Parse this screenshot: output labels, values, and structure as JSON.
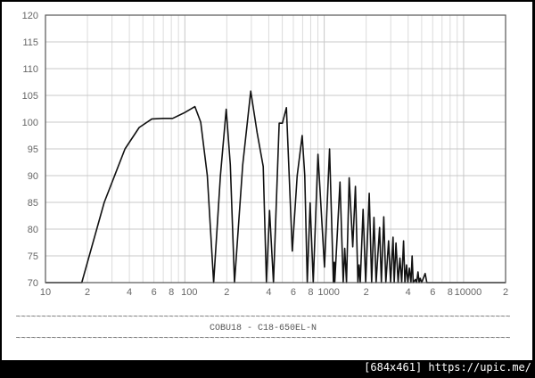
{
  "chart_data": {
    "type": "line",
    "title": "COBU18 - C18-650EL-N",
    "separator": "~~~~~~~~~~~~~~~~~~~~~~~~~~~~~~~~~~~~~~~~~~~~~~~~~~~~~~~~~~~~~~~~~~~~~~~~~~~~~~~~~~~~~~~~~~~~~~~~~",
    "xlabel": "",
    "ylabel": "",
    "xscale": "log",
    "xlim": [
      10,
      20000
    ],
    "ylim": [
      70,
      120
    ],
    "grid": true,
    "x_tick_labels": [
      {
        "value": 10,
        "label": "10"
      },
      {
        "value": 20,
        "label": "2"
      },
      {
        "value": 40,
        "label": "4"
      },
      {
        "value": 60,
        "label": "6"
      },
      {
        "value": 80,
        "label": "8"
      },
      {
        "value": 100,
        "label": "100"
      },
      {
        "value": 200,
        "label": "2"
      },
      {
        "value": 400,
        "label": "4"
      },
      {
        "value": 600,
        "label": "6"
      },
      {
        "value": 800,
        "label": "8"
      },
      {
        "value": 1000,
        "label": "1000"
      },
      {
        "value": 2000,
        "label": "2"
      },
      {
        "value": 4000,
        "label": "4"
      },
      {
        "value": 6000,
        "label": "6"
      },
      {
        "value": 8000,
        "label": "8"
      },
      {
        "value": 10000,
        "label": "10000"
      },
      {
        "value": 20000,
        "label": "2"
      }
    ],
    "y_ticks": [
      70,
      75,
      80,
      85,
      90,
      95,
      100,
      105,
      110,
      115,
      120
    ],
    "series": [
      {
        "color": "#111111",
        "x": [
          10,
          18.2,
          26.4,
          37.2,
          47,
          58,
          70,
          81.7,
          100,
          118,
          130,
          145,
          161,
          180,
          198,
          212,
          227,
          260,
          297,
          330,
          365,
          385,
          405,
          432,
          475,
          501,
          535,
          590,
          640,
          695,
          725,
          755,
          792,
          834,
          902,
          1004,
          1092,
          1164,
          1181,
          1190,
          1297,
          1368,
          1403,
          1444,
          1509,
          1602,
          1675,
          1744,
          1778,
          1813,
          1899,
          1983,
          2103,
          2188,
          2275,
          2355,
          2495,
          2570,
          2673,
          2767,
          2897,
          2994,
          3118,
          3178,
          3273,
          3390,
          3490,
          3597,
          3707,
          3793,
          3891,
          3981,
          4083,
          4188,
          4270,
          4345,
          4510,
          4600,
          4710,
          4790,
          4875,
          5000,
          5300,
          5450,
          20000
        ],
        "y": [
          70,
          70,
          85,
          95,
          99,
          100.6,
          100.7,
          100.7,
          101.8,
          102.9,
          100,
          90,
          70,
          90,
          102.4,
          92,
          70,
          92,
          105.8,
          98,
          91.7,
          70,
          83.5,
          70,
          99.8,
          99.8,
          102.7,
          75.9,
          90,
          97.5,
          90,
          70,
          84.9,
          70,
          94,
          72.9,
          95,
          70,
          73.8,
          70,
          88.8,
          70,
          76.4,
          70,
          89.6,
          76.7,
          88,
          70,
          73.3,
          70,
          83.7,
          70,
          86.7,
          70,
          82.2,
          70,
          80.3,
          70,
          82.3,
          70,
          77.8,
          70,
          78.5,
          70,
          77.4,
          70,
          74.6,
          70,
          77.8,
          70,
          73.3,
          70,
          72.7,
          70,
          75,
          70,
          70.6,
          70,
          72,
          70,
          70.8,
          70,
          71.7,
          70,
          70
        ]
      }
    ]
  },
  "watermark": "[684x461] https://upic.me/"
}
